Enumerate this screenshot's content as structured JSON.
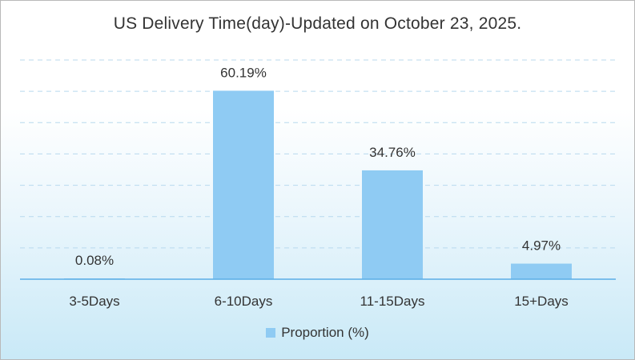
{
  "chart_data": {
    "type": "bar",
    "title": "US Delivery Time(day)-Updated on October 23, 2025.",
    "categories": [
      "3-5Days",
      "6-10Days",
      "11-15Days",
      "15+Days"
    ],
    "series": [
      {
        "name": "Proportion (%)",
        "values": [
          0.08,
          60.19,
          34.76,
          4.97
        ]
      }
    ],
    "data_labels": [
      "0.08%",
      "60.19%",
      "34.76%",
      "4.97%"
    ],
    "ylim": [
      0,
      70
    ],
    "grid": true,
    "legend_position": "bottom-center",
    "colors": {
      "bar": "#8fcbf3",
      "axis": "#5aaee6",
      "grid": "#b8d9ee",
      "text": "#333333"
    }
  }
}
